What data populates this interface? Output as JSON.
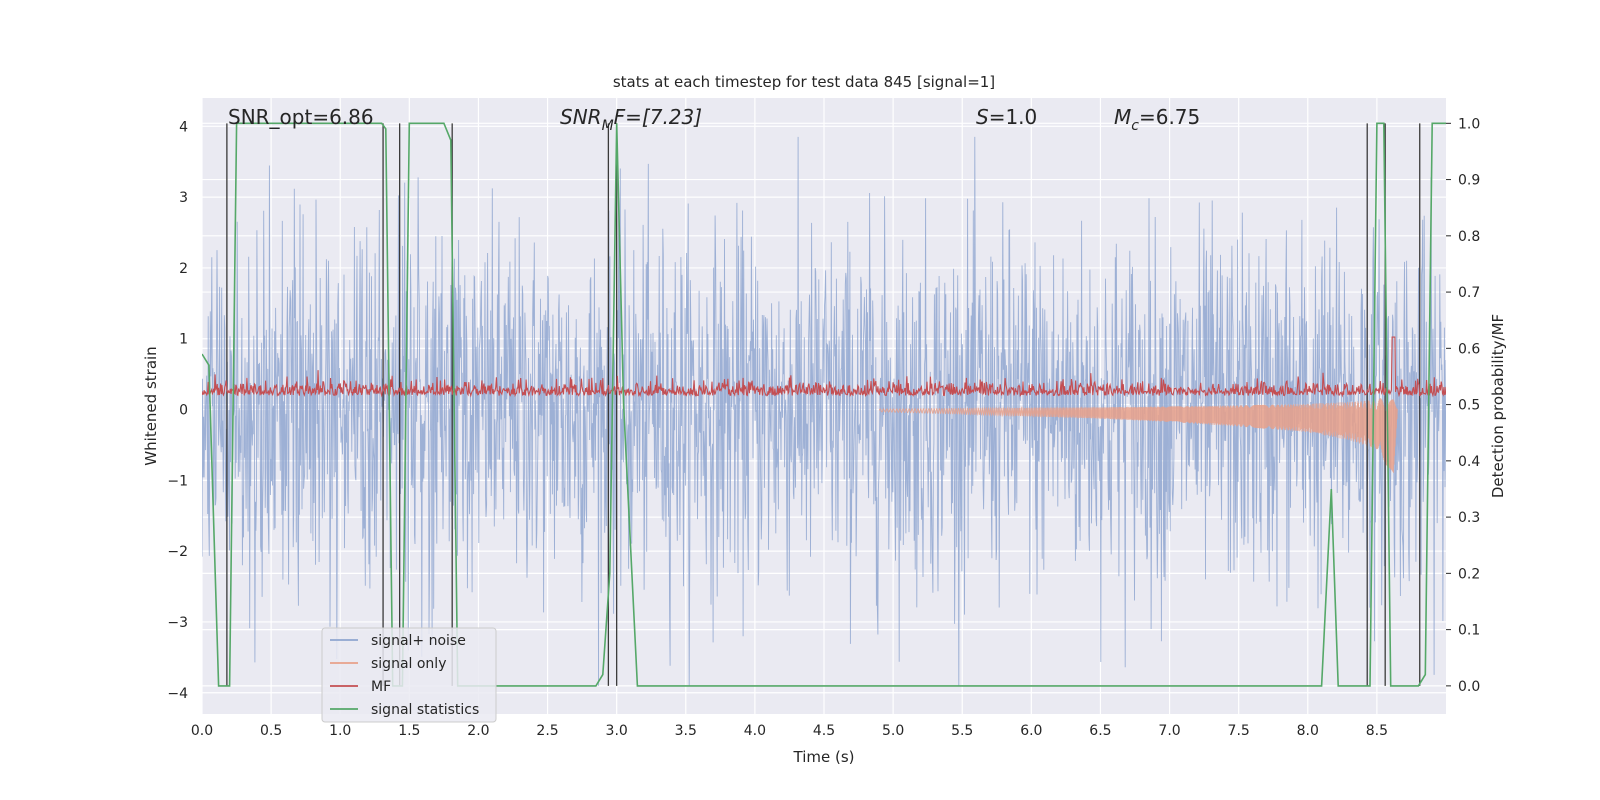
{
  "chart_data": {
    "type": "line",
    "title": "stats at each timestep for test data 845 [signal=1]",
    "xlabel": "Time (s)",
    "ylabel": "Whitened strain",
    "y2label": "Detection probability/MF",
    "xlim": [
      0.0,
      9.0
    ],
    "ylim": [
      -4.3,
      4.4
    ],
    "y2lim": [
      -0.05,
      1.045
    ],
    "grid": true,
    "legend_position": "lower-left",
    "x_ticks": [
      "0.0",
      "0.5",
      "1.0",
      "1.5",
      "2.0",
      "2.5",
      "3.0",
      "3.5",
      "4.0",
      "4.5",
      "5.0",
      "5.5",
      "6.0",
      "6.5",
      "7.0",
      "7.5",
      "8.0",
      "8.5"
    ],
    "y_ticks": [
      "4",
      "3",
      "2",
      "1",
      "0",
      "−1",
      "−2",
      "−3",
      "−4"
    ],
    "y2_ticks": [
      "1.0",
      "0.9",
      "0.8",
      "0.7",
      "0.6",
      "0.5",
      "0.4",
      "0.3",
      "0.2",
      "0.1",
      "0.0"
    ],
    "annotations": {
      "snr_opt": "SNR_opt=6.86",
      "snr_mf_main": "SNR",
      "snr_mf_sub": "M",
      "snr_mf_rest": "F=[7.23]",
      "s_italic": "S",
      "s_rest": "=1.0",
      "mc_main": "M",
      "mc_sub": "c",
      "mc_rest": "=6.75"
    },
    "series": [
      {
        "name": "signal+ noise",
        "color": "#8fa6d0",
        "description_range": [
          -3.9,
          3.85
        ]
      },
      {
        "name": "signal only",
        "color": "#e8a08a",
        "x": [
          4.9,
          5.5,
          6.0,
          6.5,
          7.0,
          7.5,
          8.0,
          8.3,
          8.5,
          8.62,
          8.65
        ],
        "amplitude": [
          0.02,
          0.04,
          0.06,
          0.08,
          0.11,
          0.15,
          0.2,
          0.27,
          0.35,
          0.6,
          0.0
        ]
      },
      {
        "name": "MF",
        "color": "#c44e52",
        "axis": "right",
        "baseline": 0.52,
        "spike": {
          "x": 8.62,
          "y": 0.62
        }
      },
      {
        "name": "signal statistics",
        "color": "#55a868",
        "axis": "right",
        "x": [
          0.0,
          0.05,
          0.12,
          0.2,
          0.25,
          0.3,
          1.3,
          1.33,
          1.38,
          1.45,
          1.5,
          1.75,
          1.8,
          1.85,
          1.9,
          2.0,
          2.1,
          2.85,
          2.9,
          2.95,
          3.0,
          3.05,
          3.15,
          8.1,
          8.17,
          8.22,
          8.3,
          8.45,
          8.5,
          8.55,
          8.6,
          8.65,
          8.8,
          8.85,
          8.9,
          8.95,
          9.0
        ],
        "y": [
          0.59,
          0.57,
          0.0,
          0.0,
          1.0,
          1.0,
          1.0,
          0.99,
          0.0,
          0.0,
          1.0,
          1.0,
          0.97,
          0.0,
          0.0,
          0.0,
          0.0,
          0.0,
          0.02,
          0.2,
          1.0,
          0.5,
          0.0,
          0.0,
          0.35,
          0.0,
          0.0,
          0.0,
          1.0,
          1.0,
          0.0,
          0.0,
          0.0,
          0.02,
          1.0,
          1.0,
          1.0
        ]
      }
    ],
    "vertical_lines_x": [
      0.18,
      1.31,
      1.43,
      1.81,
      2.94,
      3.0,
      8.43,
      8.56,
      8.81
    ]
  }
}
